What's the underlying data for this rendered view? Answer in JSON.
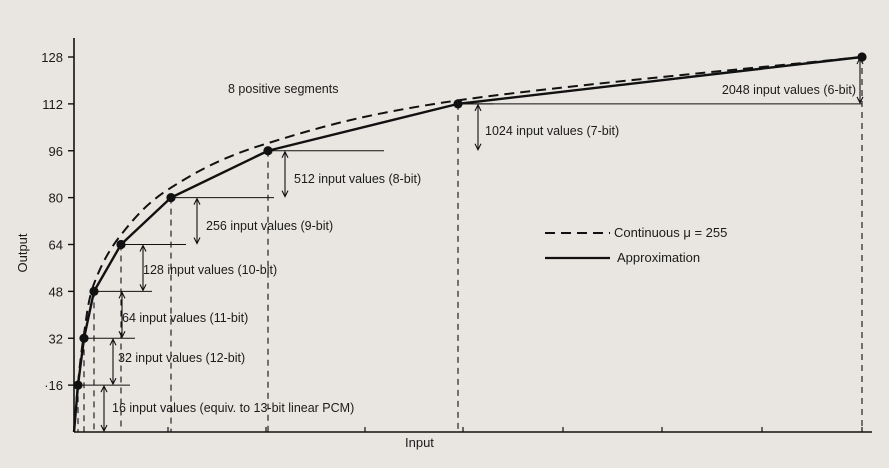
{
  "chart_data": {
    "type": "line",
    "title": "",
    "xlabel": "Input",
    "ylabel": "Output",
    "x": [
      0,
      1,
      2,
      3,
      4,
      5,
      6,
      7,
      8
    ],
    "ylim": [
      0,
      128
    ],
    "yticks": [
      16,
      32,
      48,
      64,
      80,
      96,
      112,
      128
    ],
    "ytick_labels": [
      "·16",
      "32",
      "48",
      "64",
      "80",
      "96",
      "112",
      "128"
    ],
    "series": [
      {
        "name": "Approximation",
        "style": "solid",
        "values": [
          0,
          16,
          32,
          48,
          64,
          80,
          96,
          112,
          128
        ]
      },
      {
        "name": "Continuous μ = 255",
        "style": "dashed",
        "values": [
          0,
          16.6,
          33.5,
          50.6,
          67.3,
          83.4,
          98.6,
          113.2,
          128
        ]
      }
    ],
    "segment_label": "8 positive segments",
    "annotations": [
      "16 input values (equiv. to 13-bit linear PCM)",
      "32 input values (12-bit)",
      "64 input values (11-bit)",
      "128 input values (10-bit)",
      "256 input values (9-bit)",
      "512 input values (8-bit)",
      "1024 input values (7-bit)",
      "2048 input values (6-bit)"
    ],
    "legend": [
      {
        "label": "Continuous μ = 255",
        "style": "dashed"
      },
      {
        "label": "Approximation",
        "style": "solid"
      }
    ],
    "legend_position": "center-right",
    "grid": false,
    "colors": {
      "ink": "#111111",
      "paper": "#e9e6e1"
    }
  }
}
